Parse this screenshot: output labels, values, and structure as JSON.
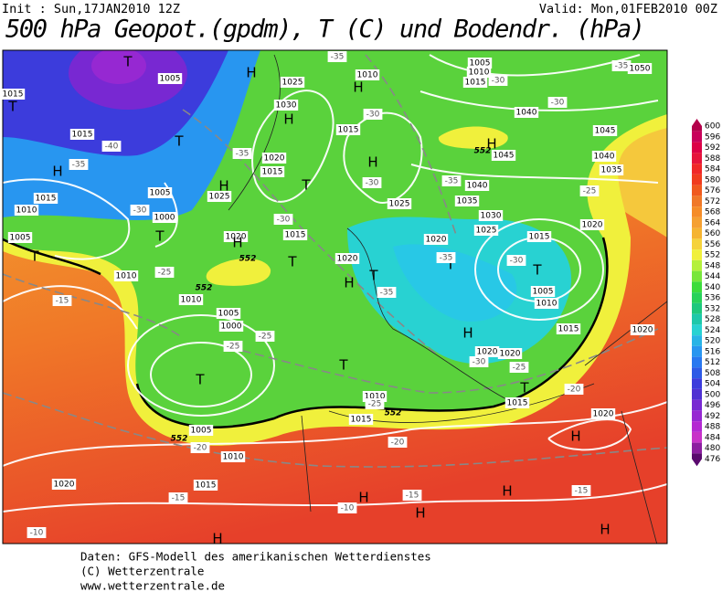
{
  "header": {
    "init": "Init : Sun,17JAN2010 12Z",
    "valid": "Valid: Mon,01FEB2010 00Z",
    "title": "500 hPa Geopot.(gpdm), T (C) und Bodendr. (hPa)"
  },
  "map": {
    "labels": [
      "T",
      "1005",
      "1015",
      "T",
      "H",
      "1015",
      "-40",
      "-35",
      "T",
      "H",
      "1025",
      "1030",
      "H",
      "-35",
      "1010",
      "H",
      "-30",
      "1015",
      "1005",
      "1010",
      "1015",
      "-30",
      "-35",
      "1050",
      "1040",
      "-30",
      "H",
      "1045",
      "552",
      "1045",
      "1040",
      "1035",
      "-25",
      "H",
      "-30",
      "-35",
      "1040",
      "1035",
      "1030",
      "1025",
      "1025",
      "1020",
      "1015",
      "-30",
      "T",
      "1005",
      "1010",
      "1020",
      "1015",
      "1020",
      "1020",
      "H",
      "1025",
      "-35",
      "1015",
      "T",
      "1005",
      "1000",
      "T",
      "-30",
      "1010",
      "1015",
      "1005",
      "T",
      "1020",
      "H",
      "552",
      "1015",
      "T",
      "-30",
      "1020",
      "H",
      "T",
      "-35",
      "T",
      "-35",
      "H",
      "1020",
      "1020",
      "-30",
      "-25",
      "T",
      "1015",
      "-20",
      "552",
      "1010",
      "-25",
      "1010",
      "-15",
      "1005",
      "1000",
      "-25",
      "-25",
      "T",
      "T",
      "1010",
      "-25",
      "552",
      "1015",
      "552",
      "1005",
      "-20",
      "1010",
      "-20",
      "1020",
      "H",
      "1020",
      "1015",
      "-15",
      "-15",
      "H",
      "H",
      "H",
      "-10",
      "-15",
      "-10",
      "H",
      "H"
    ]
  },
  "colorbar": {
    "levels": [
      600,
      596,
      592,
      588,
      584,
      580,
      576,
      572,
      568,
      564,
      560,
      556,
      552,
      548,
      544,
      540,
      536,
      532,
      528,
      524,
      520,
      516,
      512,
      508,
      504,
      500,
      496,
      492,
      488,
      484,
      480,
      476
    ],
    "colors": [
      "#b4004b",
      "#c8005a",
      "#dc0046",
      "#e6143c",
      "#f02828",
      "#f03c1e",
      "#f05a1e",
      "#f07828",
      "#f58c28",
      "#f5a032",
      "#f5b432",
      "#f5d23c",
      "#f0f03c",
      "#b4f03c",
      "#78e63c",
      "#3cdc3c",
      "#28d25a",
      "#1ec87d",
      "#1ec8aa",
      "#28d2d2",
      "#28b4e6",
      "#2896f0",
      "#2878f0",
      "#2d5ae6",
      "#3c3cdc",
      "#5032d2",
      "#7828d2",
      "#9628d2",
      "#b428d2",
      "#c832c8",
      "#8c1ea0",
      "#5a0a6e"
    ]
  },
  "footer": {
    "lines": [
      "Daten: GFS-Modell des amerikanischen Wetterdienstes",
      "(C) Wetterzentrale",
      "www.wetterzentrale.de"
    ]
  }
}
